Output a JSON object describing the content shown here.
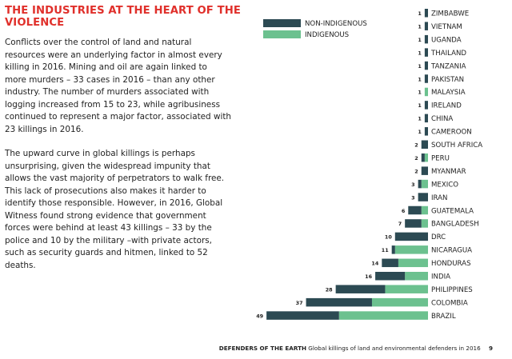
{
  "heading": "THE INDUSTRIES AT THE HEART OF THE VIOLENCE",
  "paragraphs": [
    "Conflicts over the control of land and natural resources were an underlying factor in almost every killing in 2016. Mining and oil are again linked to more murders – 33 cases in 2016 – than any other industry. The number of murders associated with logging increased from 15 to 23, while agribusiness continued to represent a major factor, associated with 23 killings in 2016.",
    "The upward curve in global killings is perhaps unsurprising, given the widespread impunity that allows the vast majority of perpetrators to walk free. This lack of prosecutions also makes it harder to identify those responsible. However, in 2016, Global Witness found strong evidence that government forces were behind at least 43 killings – 33 by the police and 10 by the military –with private actors, such as security guards and hitmen, linked to 52 deaths."
  ],
  "footer": {
    "bold": "DEFENDERS OF THE EARTH",
    "text": "Global killings of land and environmental defenders in 2016",
    "page": "9"
  },
  "colors": {
    "heading": "#e0302b",
    "non_indigenous": "#2c4a53",
    "indigenous": "#6cc18f"
  },
  "chart_data": {
    "type": "bar",
    "orientation": "horizontal",
    "stacked": true,
    "title": "",
    "legend": [
      "NON-INDIGENOUS",
      "INDIGENOUS"
    ],
    "categories": [
      "ZIMBABWE",
      "VIETNAM",
      "UGANDA",
      "THAILAND",
      "TANZANIA",
      "PAKISTAN",
      "MALAYSIA",
      "IRELAND",
      "CHINA",
      "CAMEROON",
      "SOUTH AFRICA",
      "PERU",
      "MYANMAR",
      "MEXICO",
      "IRAN",
      "GUATEMALA",
      "BANGLADESH",
      "DRC",
      "NICARAGUA",
      "HONDURAS",
      "INDIA",
      "PHILIPPINES",
      "COLOMBIA",
      "BRAZIL"
    ],
    "totals": [
      1,
      1,
      1,
      1,
      1,
      1,
      1,
      1,
      1,
      1,
      2,
      2,
      2,
      3,
      3,
      6,
      7,
      10,
      11,
      14,
      16,
      28,
      37,
      49
    ],
    "series": [
      {
        "name": "NON-INDIGENOUS",
        "values": [
          1,
          1,
          1,
          1,
          1,
          1,
          0,
          1,
          1,
          1,
          2,
          1,
          2,
          1,
          3,
          4,
          5,
          10,
          1,
          5,
          9,
          15,
          20,
          22
        ]
      },
      {
        "name": "INDIGENOUS",
        "values": [
          0,
          0,
          0,
          0,
          0,
          0,
          1,
          0,
          0,
          0,
          0,
          1,
          0,
          2,
          0,
          2,
          2,
          0,
          10,
          9,
          7,
          13,
          17,
          27
        ]
      }
    ]
  }
}
